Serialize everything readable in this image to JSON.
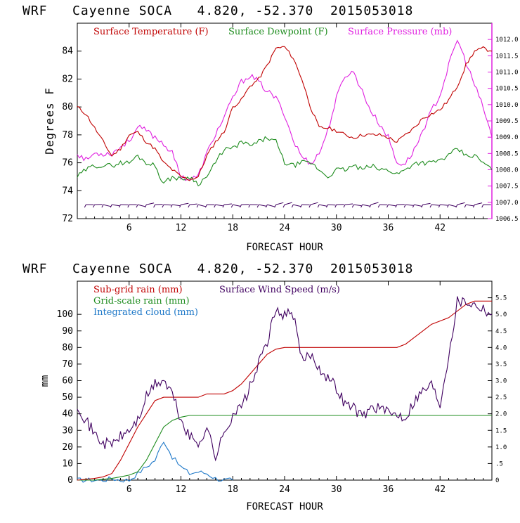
{
  "chart_data": [
    {
      "type": "line",
      "title": "WRF   Cayenne SOCA   4.820, -52.370  2015053018",
      "xlabel": "FORECAST HOUR",
      "ylabel": "Degrees F",
      "xlim": [
        0,
        48
      ],
      "ylim": [
        72,
        86
      ],
      "y2lim": [
        1006.5,
        1012.5
      ],
      "x_ticks": [
        "6",
        "12",
        "18",
        "24",
        "30",
        "36",
        "42"
      ],
      "y_ticks": [
        "72",
        "74",
        "76",
        "78",
        "80",
        "82",
        "84"
      ],
      "y2_ticks": [
        "1006.5",
        "1007.0",
        "1007.5",
        "1008.0",
        "1008.5",
        "1009.0",
        "1009.5",
        "1010.0",
        "1010.5",
        "1011.0",
        "1011.5",
        "1012.0"
      ],
      "colors": {
        "temperature": "#c00000",
        "dewpoint": "#1e8c1e",
        "pressure": "#e020e0",
        "wind_barbs": "#400060"
      },
      "series": [
        {
          "name": "Surface Temperature (F)",
          "axis": "left",
          "x": [
            0,
            1,
            2,
            3,
            4,
            5,
            6,
            7,
            8,
            9,
            10,
            11,
            12,
            13,
            14,
            15,
            16,
            17,
            18,
            19,
            20,
            21,
            22,
            23,
            24,
            25,
            26,
            27,
            28,
            29,
            30,
            31,
            32,
            33,
            34,
            35,
            36,
            37,
            38,
            39,
            40,
            41,
            42,
            43,
            44,
            45,
            46,
            47,
            48
          ],
          "y": [
            80,
            79.5,
            78.5,
            77.5,
            76.5,
            77,
            78,
            78.2,
            77.5,
            77,
            76,
            75.5,
            75,
            74.8,
            75,
            76.5,
            77.5,
            78.2,
            80,
            80.5,
            81.5,
            82,
            83,
            84.2,
            84.3,
            83.5,
            82,
            80,
            78.5,
            78.5,
            78.3,
            78,
            77.8,
            78,
            78,
            78,
            77.8,
            77.5,
            78,
            78.5,
            79.2,
            79.5,
            79.8,
            80.5,
            81.5,
            83,
            84,
            84.2,
            84
          ]
        },
        {
          "name": "Surface Dewpoint (F)",
          "axis": "left",
          "x": [
            0,
            1,
            2,
            3,
            4,
            5,
            6,
            7,
            8,
            9,
            10,
            11,
            12,
            13,
            14,
            15,
            16,
            17,
            18,
            19,
            20,
            21,
            22,
            23,
            24,
            25,
            26,
            27,
            28,
            29,
            30,
            31,
            32,
            33,
            34,
            35,
            36,
            37,
            38,
            39,
            40,
            41,
            42,
            43,
            44,
            45,
            46,
            47,
            48
          ],
          "y": [
            75,
            75.5,
            75.8,
            75.8,
            75.8,
            76,
            76,
            76.5,
            76,
            75.8,
            74.5,
            75,
            74.8,
            75,
            74.5,
            75,
            76,
            77,
            77,
            77.5,
            77.2,
            77.5,
            77.8,
            77.5,
            76,
            75.8,
            76,
            76,
            75.5,
            75,
            75.5,
            75.5,
            75.8,
            75.5,
            75.8,
            75.5,
            75.5,
            75.2,
            75.5,
            76,
            76,
            76,
            76.2,
            76.5,
            77,
            76.5,
            76.5,
            76,
            75.5
          ]
        },
        {
          "name": "Surface Pressure (mb)",
          "axis": "right",
          "x": [
            0,
            1,
            2,
            3,
            4,
            5,
            6,
            7,
            8,
            9,
            10,
            11,
            12,
            13,
            14,
            15,
            16,
            17,
            18,
            19,
            20,
            21,
            22,
            23,
            24,
            25,
            26,
            27,
            28,
            29,
            30,
            31,
            32,
            33,
            34,
            35,
            36,
            37,
            38,
            39,
            40,
            41,
            42,
            43,
            44,
            45,
            46,
            47,
            48
          ],
          "y": [
            1008.5,
            1008.3,
            1008.5,
            1008.5,
            1008.5,
            1008.7,
            1008.9,
            1009.3,
            1009.2,
            1009,
            1008.8,
            1008.5,
            1007.8,
            1007.7,
            1007.8,
            1008.5,
            1009.1,
            1009.6,
            1010.2,
            1010.7,
            1010.9,
            1010.7,
            1010.4,
            1010.2,
            1009.7,
            1008.9,
            1008.4,
            1008.2,
            1008.5,
            1009.2,
            1010.2,
            1010.9,
            1011.0,
            1010.4,
            1009.8,
            1009.4,
            1009.0,
            1008.2,
            1008.2,
            1008.6,
            1009.2,
            1009.8,
            1010.3,
            1011.2,
            1012.0,
            1011.3,
            1010.6,
            1009.9,
            1009.0
          ]
        }
      ],
      "wind_barbs": {
        "level_degF": 73,
        "x": [
          1,
          2,
          3,
          4,
          5,
          6,
          7,
          8,
          9,
          10,
          11,
          12,
          13,
          14,
          15,
          16,
          17,
          18,
          19,
          20,
          21,
          22,
          23,
          24,
          25,
          26,
          27,
          28,
          29,
          30,
          31,
          32,
          33,
          34,
          35,
          36,
          37,
          38,
          39,
          40,
          41,
          42,
          43,
          44,
          45,
          46,
          47
        ]
      },
      "legend": "top-left",
      "grid": false
    },
    {
      "type": "line",
      "title": "WRF   Cayenne SOCA   4.820, -52.370  2015053018",
      "xlabel": "FORECAST HOUR",
      "ylabel": "mm",
      "xlim": [
        0,
        48
      ],
      "ylim": [
        0,
        120
      ],
      "y2lim": [
        0,
        6
      ],
      "x_ticks": [
        "6",
        "12",
        "18",
        "24",
        "30",
        "36",
        "42"
      ],
      "y_ticks": [
        "0",
        "10",
        "20",
        "30",
        "40",
        "50",
        "60",
        "70",
        "80",
        "90",
        "100"
      ],
      "y2_ticks": [
        "0",
        ".5",
        "1.0",
        "1.5",
        "2.0",
        "2.5",
        "3.0",
        "3.5",
        "4.0",
        "4.5",
        "5.0",
        "5.5"
      ],
      "colors": {
        "subgrid": "#c00000",
        "gridscale": "#1e8c1e",
        "cloud": "#1e78c8",
        "wind": "#400060"
      },
      "series": [
        {
          "name": "Sub-grid rain (mm)",
          "axis": "left",
          "x": [
            0,
            1,
            2,
            3,
            4,
            5,
            6,
            7,
            8,
            9,
            10,
            11,
            12,
            13,
            14,
            15,
            16,
            17,
            18,
            19,
            20,
            21,
            22,
            23,
            24,
            25,
            26,
            27,
            28,
            29,
            30,
            31,
            32,
            33,
            34,
            35,
            36,
            37,
            38,
            39,
            40,
            41,
            42,
            43,
            44,
            45,
            46,
            47,
            48
          ],
          "y": [
            0,
            0.5,
            1,
            2,
            4,
            12,
            22,
            32,
            40,
            48,
            50,
            50,
            50,
            50,
            50,
            52,
            52,
            52,
            54,
            58,
            64,
            70,
            76,
            79,
            80,
            80,
            80,
            80,
            80,
            80,
            80,
            80,
            80,
            80,
            80,
            80,
            80,
            80,
            82,
            86,
            90,
            94,
            96,
            98,
            102,
            106,
            108,
            108,
            108
          ]
        },
        {
          "name": "Grid-scale rain (mm)",
          "axis": "left",
          "x": [
            0,
            1,
            2,
            3,
            4,
            5,
            6,
            7,
            8,
            9,
            10,
            11,
            12,
            13,
            14,
            15,
            16,
            17,
            18,
            19,
            20,
            21,
            22,
            23,
            24,
            25,
            26,
            27,
            28,
            29,
            30,
            31,
            32,
            33,
            34,
            35,
            36,
            37,
            38,
            39,
            40,
            41,
            42,
            43,
            44,
            45,
            46,
            47,
            48
          ],
          "y": [
            0,
            0,
            0,
            0.5,
            1,
            2,
            3,
            5,
            12,
            22,
            32,
            36,
            38,
            39,
            39,
            39,
            39,
            39,
            39,
            39,
            39,
            39,
            39,
            39,
            39,
            39,
            39,
            39,
            39,
            39,
            39,
            39,
            39,
            39,
            39,
            39,
            39,
            39,
            39,
            39,
            39,
            39,
            39,
            39,
            39,
            39,
            39,
            39,
            39
          ]
        },
        {
          "name": "Integrated cloud (mm)",
          "axis": "left",
          "x": [
            0,
            1,
            2,
            3,
            4,
            5,
            6,
            7,
            8,
            9,
            10,
            11,
            12,
            13,
            14,
            15,
            16,
            17,
            18
          ],
          "y": [
            0,
            0,
            0,
            0,
            1,
            0,
            0,
            4,
            8,
            12,
            24,
            14,
            8,
            4,
            5,
            4,
            1,
            0,
            0
          ]
        },
        {
          "name": "Surface Wind Speed (m/s)",
          "axis": "right",
          "x": [
            0,
            1,
            2,
            3,
            4,
            5,
            6,
            7,
            8,
            9,
            10,
            11,
            12,
            13,
            14,
            15,
            16,
            17,
            18,
            19,
            20,
            21,
            22,
            23,
            24,
            25,
            26,
            27,
            28,
            29,
            30,
            31,
            32,
            33,
            34,
            35,
            36,
            37,
            38,
            39,
            40,
            41,
            42,
            43,
            44,
            45,
            46,
            47,
            48
          ],
          "y": [
            2.3,
            1.8,
            1.4,
            1.1,
            1.1,
            1.3,
            1.5,
            1.8,
            2.5,
            2.9,
            3.0,
            2.6,
            1.8,
            1.3,
            1.1,
            1.6,
            0.7,
            1.4,
            2.0,
            2.2,
            2.8,
            3.5,
            4.2,
            5.1,
            5.0,
            5.0,
            3.6,
            3.8,
            3.4,
            3.1,
            2.8,
            2.3,
            2.2,
            1.9,
            2.2,
            2.2,
            2.0,
            2.0,
            1.9,
            2.4,
            2.7,
            2.9,
            2.3,
            3.8,
            5.4,
            5.4,
            5.3,
            5.2,
            5.0
          ]
        }
      ],
      "legend": "top-left",
      "grid": false
    }
  ]
}
